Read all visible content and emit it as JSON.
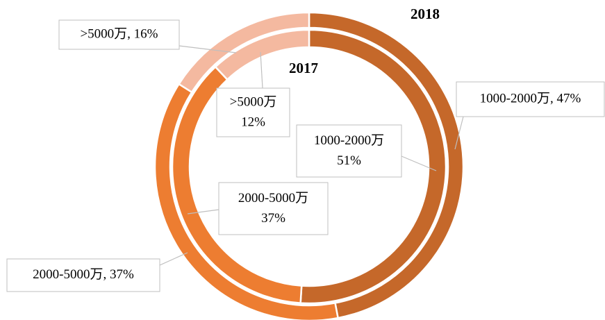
{
  "chart_data": {
    "type": "doughnut",
    "categories": [
      "1000-2000万",
      "2000-5000万",
      ">5000万"
    ],
    "series": [
      {
        "name": "2018",
        "colors": [
          "#c5682a",
          "#ed7d31",
          "#f4b9a0"
        ],
        "values": [
          47,
          37,
          16
        ],
        "value_labels": [
          "1000-2000万, 47%",
          "2000-5000万, 37%",
          ">5000万, 16%"
        ]
      },
      {
        "name": "2017",
        "colors": [
          "#c5682a",
          "#ed7d31",
          "#f4b9a0"
        ],
        "values": [
          51,
          37,
          12
        ],
        "value_labels": [
          "51%",
          "37%",
          "12%"
        ]
      }
    ]
  }
}
